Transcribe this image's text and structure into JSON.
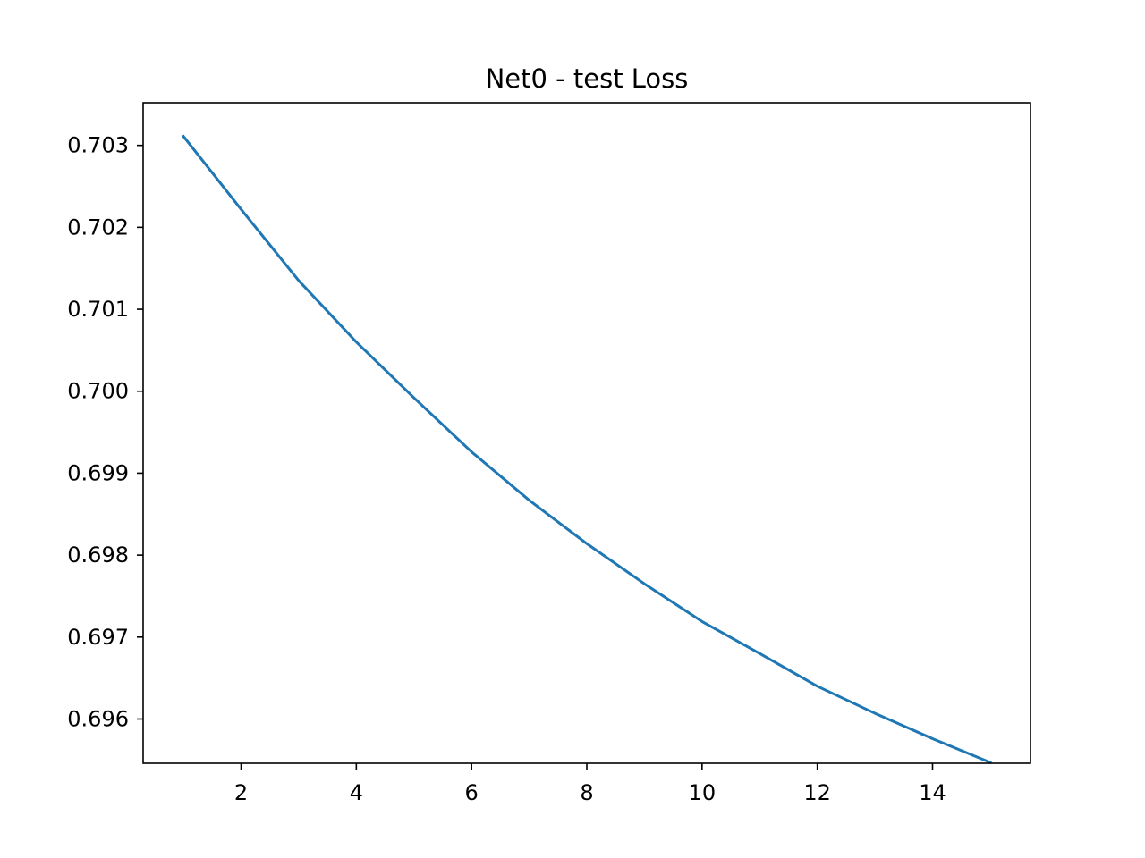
{
  "chart_data": {
    "type": "line",
    "title": "Net0 - test Loss",
    "xlabel": "",
    "ylabel": "",
    "xlim": [
      0.3,
      15.7
    ],
    "ylim": [
      0.69546,
      0.70352
    ],
    "x_ticks": [
      2,
      4,
      6,
      8,
      10,
      12,
      14
    ],
    "y_ticks": [
      0.696,
      0.697,
      0.698,
      0.699,
      0.7,
      0.701,
      0.702,
      0.703
    ],
    "x_tick_labels": [
      "2",
      "4",
      "6",
      "8",
      "10",
      "12",
      "14"
    ],
    "y_tick_labels": [
      "0.696",
      "0.697",
      "0.698",
      "0.699",
      "0.700",
      "0.701",
      "0.702",
      "0.703"
    ],
    "grid": false,
    "series": [
      {
        "color": "#1f77b4",
        "x": [
          1,
          2,
          3,
          4,
          5,
          6,
          7,
          8,
          9,
          10,
          11,
          12,
          13,
          14,
          15
        ],
        "y": [
          0.70311,
          0.70222,
          0.70135,
          0.7006,
          0.69992,
          0.69926,
          0.69867,
          0.69814,
          0.69765,
          0.69719,
          0.6968,
          0.6964,
          0.69607,
          0.69576,
          0.69547
        ]
      }
    ]
  }
}
